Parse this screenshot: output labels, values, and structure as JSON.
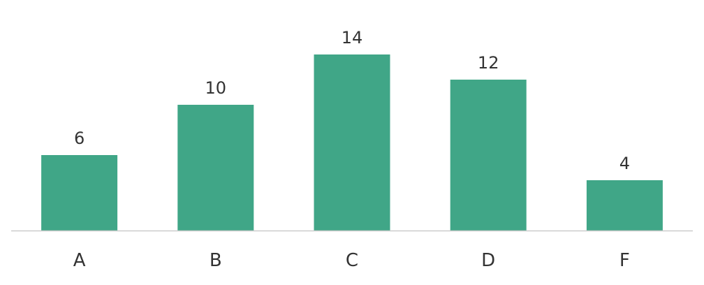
{
  "chart_data": {
    "type": "bar",
    "categories": [
      "A",
      "B",
      "C",
      "D",
      "F"
    ],
    "values": [
      6,
      10,
      14,
      12,
      4
    ],
    "title": "",
    "xlabel": "",
    "ylabel": "",
    "ylim": [
      0,
      14
    ],
    "grid": false,
    "data_labels": true,
    "colors": {
      "bar": "#40a687",
      "baseline": "#cccccc",
      "text": "#333333"
    }
  }
}
